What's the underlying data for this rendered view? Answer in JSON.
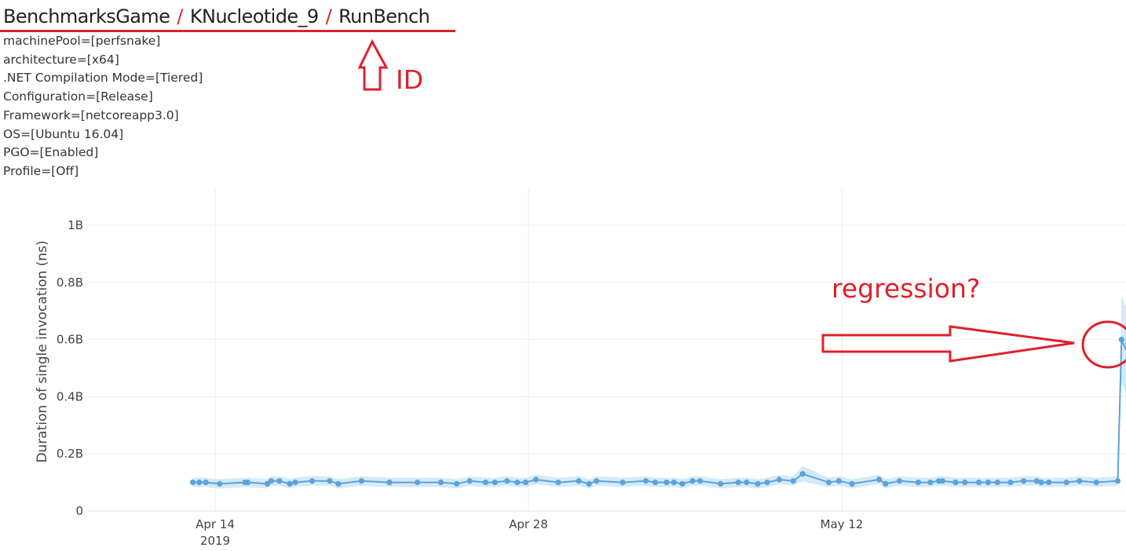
{
  "breadcrumb": {
    "parts": [
      "BenchmarksGame",
      "KNucleotide_9",
      "RunBench"
    ],
    "separator": "/"
  },
  "params": [
    "machinePool=[perfsnake]",
    "architecture=[x64]",
    ".NET Compilation Mode=[Tiered]",
    "Configuration=[Release]",
    "Framework=[netcoreapp3.0]",
    "OS=[Ubuntu 16.04]",
    "PGO=[Enabled]",
    "Profile=[Off]"
  ],
  "annotations": {
    "id_label": "ID",
    "regression_label": "regression?",
    "color": "#e0202a"
  },
  "chart_data": {
    "type": "line",
    "xlabel": "",
    "ylabel": "Duration of single invocation (ns)",
    "y_unit_note": "values in billions of ns (B)",
    "x_ticks": [
      {
        "date": "2019-04-14",
        "label": "Apr 14",
        "sublabel": "2019"
      },
      {
        "date": "2019-04-28",
        "label": "Apr 28",
        "sublabel": ""
      },
      {
        "date": "2019-05-12",
        "label": "May 12",
        "sublabel": ""
      }
    ],
    "y_ticks": [
      {
        "value": 0,
        "label": "0"
      },
      {
        "value": 0.2,
        "label": "0.2B"
      },
      {
        "value": 0.4,
        "label": "0.4B"
      },
      {
        "value": 0.6,
        "label": "0.6B"
      },
      {
        "value": 0.8,
        "label": "0.8B"
      },
      {
        "value": 1.0,
        "label": "1B"
      }
    ],
    "xlim": [
      "2019-04-01",
      "2019-05-25T00:00"
    ],
    "ylim": [
      0,
      1.1
    ],
    "grid": true,
    "line_color": "#5aa3dc",
    "band_color": "#c5dff3",
    "series": [
      {
        "x": [
          "2019-04-13T00:00",
          "2019-04-13T07:00",
          "2019-04-13T14:00",
          "2019-04-14T05:00",
          "2019-04-15T08:00",
          "2019-04-15T11:00",
          "2019-04-16T08:00",
          "2019-04-16T12:00",
          "2019-04-16T21:00",
          "2019-04-17T08:00",
          "2019-04-17T14:00",
          "2019-04-18T08:00",
          "2019-04-19T03:00",
          "2019-04-19T12:00",
          "2019-04-20T13:00",
          "2019-04-21T19:00",
          "2019-04-23T01:00",
          "2019-04-24T02:00",
          "2019-04-24T19:00",
          "2019-04-25T09:00",
          "2019-04-26T02:00",
          "2019-04-26T12:00",
          "2019-04-27T01:00",
          "2019-04-27T12:00",
          "2019-04-27T21:00",
          "2019-04-28T08:00",
          "2019-04-29T08:00",
          "2019-04-30T06:00",
          "2019-04-30T17:00",
          "2019-05-01T01:00",
          "2019-05-02T05:00",
          "2019-05-03T06:00",
          "2019-05-03T16:00",
          "2019-05-04T04:00",
          "2019-05-04T12:00",
          "2019-05-04T21:00",
          "2019-05-05T08:00",
          "2019-05-05T16:00",
          "2019-05-06T14:00",
          "2019-05-07T09:00",
          "2019-05-07T18:00",
          "2019-05-08T06:00",
          "2019-05-08T16:00",
          "2019-05-09T05:00",
          "2019-05-09T20:00",
          "2019-05-10T06:00",
          "2019-05-11T10:00",
          "2019-05-11T21:00",
          "2019-05-12T11:00",
          "2019-05-13T16:00",
          "2019-05-13T23:00",
          "2019-05-14T14:00",
          "2019-05-15T10:00",
          "2019-05-15T23:00",
          "2019-05-16T08:00",
          "2019-05-16T12:00",
          "2019-05-17T02:00",
          "2019-05-17T12:00",
          "2019-05-18T03:00",
          "2019-05-18T13:00",
          "2019-05-18T23:00",
          "2019-05-19T13:00",
          "2019-05-20T03:00",
          "2019-05-20T17:00",
          "2019-05-20T22:00",
          "2019-05-21T06:00",
          "2019-05-22T01:00",
          "2019-05-22T15:00",
          "2019-05-23T09:00",
          "2019-05-24T08:00",
          "2019-05-24T12:00",
          "2019-05-24T20:00"
        ],
        "y": [
          0.1,
          0.1,
          0.1,
          0.095,
          0.1,
          0.1,
          0.095,
          0.105,
          0.105,
          0.095,
          0.1,
          0.105,
          0.105,
          0.095,
          0.105,
          0.1,
          0.1,
          0.1,
          0.095,
          0.105,
          0.1,
          0.1,
          0.105,
          0.1,
          0.1,
          0.11,
          0.1,
          0.105,
          0.095,
          0.105,
          0.1,
          0.105,
          0.1,
          0.1,
          0.1,
          0.095,
          0.105,
          0.105,
          0.095,
          0.1,
          0.1,
          0.095,
          0.1,
          0.11,
          0.105,
          0.13,
          0.1,
          0.105,
          0.095,
          0.11,
          0.095,
          0.105,
          0.1,
          0.1,
          0.105,
          0.105,
          0.1,
          0.1,
          0.1,
          0.1,
          0.1,
          0.1,
          0.105,
          0.105,
          0.1,
          0.1,
          0.1,
          0.105,
          0.1,
          0.105,
          0.6,
          0.54
        ]
      }
    ]
  }
}
